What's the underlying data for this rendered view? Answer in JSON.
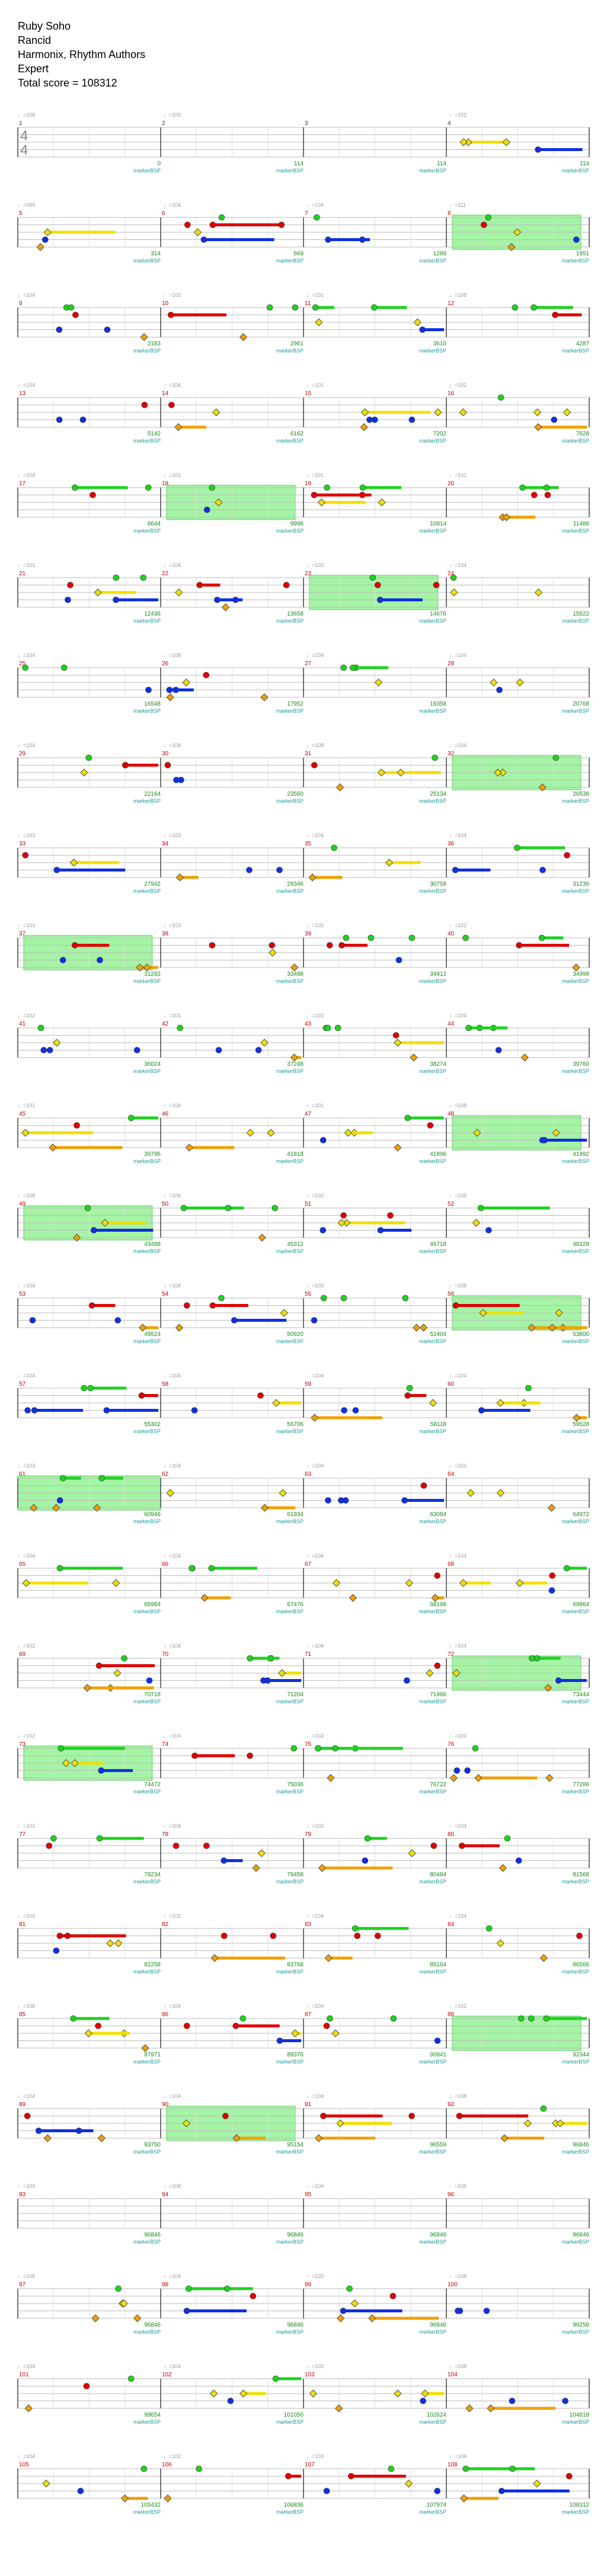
{
  "song": {
    "title": "Ruby Soho",
    "artist": "Rancid",
    "charter": "Harmonix, Rhythm Authors",
    "difficulty": "Expert",
    "total_score_label": "Total score = 108312"
  },
  "chart_data": {
    "type": "other",
    "description_free": true,
    "time_signature": "4/4",
    "first_bpm_label": "♩=108",
    "tempo_markers_row1": [
      "♩=100",
      "♩=102"
    ],
    "measures_per_row": 4,
    "total_measures": 108,
    "overdrive_label": "markerBSP",
    "lane_colors": [
      "#1fd11f",
      "#e00000",
      "#f0e000",
      "#1030e0",
      "#f0a000"
    ],
    "rows": [
      {
        "start": 1,
        "scores": [
          0,
          114,
          114,
          114
        ],
        "bpm": [
          "♩=108",
          "♩=100",
          "",
          "♩=102"
        ]
      },
      {
        "start": 5,
        "scores": [
          314,
          669,
          1289,
          1951
        ],
        "bpm": [
          "♩=099",
          "♩=104",
          "♩=104",
          "♩=111"
        ]
      },
      {
        "start": 9,
        "scores": [
          2183,
          2961,
          3610,
          4287
        ],
        "bpm": [
          "♩=104",
          "♩=102",
          "♩=101",
          "♩=108"
        ]
      },
      {
        "start": 13,
        "scores": [
          5142,
          6162,
          7202,
          7628
        ],
        "bpm": [
          "♩=104",
          "♩=104",
          "♩=101",
          "♩=102"
        ]
      },
      {
        "start": 17,
        "scores": [
          8644,
          9998,
          10914,
          11488
        ],
        "bpm": [
          "♩=104",
          "♩=101",
          "♩=101",
          "♩=102"
        ]
      },
      {
        "start": 21,
        "scores": [
          12436,
          13658,
          14676,
          15522
        ],
        "bpm": [
          "♩=101",
          "♩=104",
          "♩=102",
          "♩=104"
        ]
      },
      {
        "start": 25,
        "scores": [
          16548,
          17952,
          19358,
          20768
        ],
        "bpm": [
          "♩=104",
          "♩=108",
          "♩=104",
          "♩=104"
        ]
      },
      {
        "start": 29,
        "scores": [
          22164,
          23560,
          25134,
          26538
        ],
        "bpm": [
          "♩=104",
          "♩=104",
          "♩=108",
          "♩=104"
        ]
      },
      {
        "start": 33,
        "scores": [
          27942,
          29346,
          30758,
          31236
        ],
        "bpm": [
          "♩=103",
          "♩=103",
          "♩=104",
          "♩=104"
        ]
      },
      {
        "start": 37,
        "scores": [
          31282,
          33488,
          34912,
          34999
        ],
        "bpm": [
          "♩=103",
          "♩=103",
          "♩=102",
          "♩=102"
        ]
      },
      {
        "start": 41,
        "scores": [
          36024,
          37248,
          38274,
          39760
        ],
        "bpm": [
          "♩=102",
          "♩=101",
          "♩=102",
          "♩=104"
        ]
      },
      {
        "start": 45,
        "scores": [
          39796,
          41818,
          41896,
          41992
        ],
        "bpm": [
          "♩=101",
          "♩=104",
          "♩=101",
          "♩=108"
        ]
      },
      {
        "start": 49,
        "scores": [
          43488,
          45312,
          46718,
          48128
        ],
        "bpm": [
          "♩=108",
          "♩=106",
          "♩=102",
          "♩=105"
        ]
      },
      {
        "start": 53,
        "scores": [
          49524,
          50920,
          52404,
          53800
        ],
        "bpm": [
          "♩=104",
          "♩=104",
          "♩=103",
          "♩=108"
        ]
      },
      {
        "start": 57,
        "scores": [
          55302,
          56706,
          58118,
          59528
        ],
        "bpm": [
          "♩=104",
          "♩=104",
          "♩=104",
          "♩=104"
        ]
      },
      {
        "start": 61,
        "scores": [
          60946,
          61934,
          63084,
          64972
        ],
        "bpm": [
          "♩=103",
          "♩=104",
          "♩=104",
          "♩=101"
        ]
      },
      {
        "start": 65,
        "scores": [
          65984,
          67476,
          68198,
          69964
        ],
        "bpm": [
          "♩=104",
          "♩=104",
          "♩=104",
          "♩=104"
        ]
      },
      {
        "start": 69,
        "scores": [
          70718,
          71204,
          71966,
          73444
        ],
        "bpm": [
          "♩=102",
          "♩=104",
          "♩=104",
          "♩=104"
        ]
      },
      {
        "start": 73,
        "scores": [
          74472,
          75036,
          76722,
          77286
        ],
        "bpm": [
          "♩=102",
          "♩=104",
          "♩=102",
          "♩=104"
        ]
      },
      {
        "start": 77,
        "scores": [
          78234,
          79458,
          80484,
          81568
        ],
        "bpm": [
          "♩=101",
          "♩=104",
          "♩=102",
          "♩=104"
        ]
      },
      {
        "start": 81,
        "scores": [
          82258,
          83768,
          85164,
          86566
        ],
        "bpm": [
          "♩=104",
          "♩=102",
          "♩=104",
          "♩=104"
        ]
      },
      {
        "start": 85,
        "scores": [
          87971,
          89376,
          90941,
          92344
        ],
        "bpm": [
          "♩=106",
          "♩=104",
          "♩=104",
          "♩=102"
        ]
      },
      {
        "start": 89,
        "scores": [
          93750,
          95154,
          96559,
          96846
        ],
        "bpm": [
          "♩=104",
          "♩=104",
          "♩=104",
          "♩=108"
        ]
      },
      {
        "start": 93,
        "scores": [
          96846,
          96846,
          96846,
          96846
        ],
        "bpm": [
          "♩=103",
          "♩=108",
          "♩=104",
          "♩=106"
        ]
      },
      {
        "start": 97,
        "scores": [
          96846,
          96846,
          96846,
          99258
        ],
        "bpm": [
          "♩=106",
          "♩=104",
          "♩=102",
          "♩=108"
        ]
      },
      {
        "start": 101,
        "scores": [
          99654,
          101050,
          102624,
          104818
        ],
        "bpm": [
          "♩=104",
          "♩=104",
          "♩=102",
          "♩=108"
        ]
      },
      {
        "start": 105,
        "scores": [
          105432,
          106836,
          107974,
          108312
        ],
        "bpm": [
          "♩=104",
          "♩=102",
          "♩=103",
          "♩=104"
        ]
      }
    ]
  }
}
